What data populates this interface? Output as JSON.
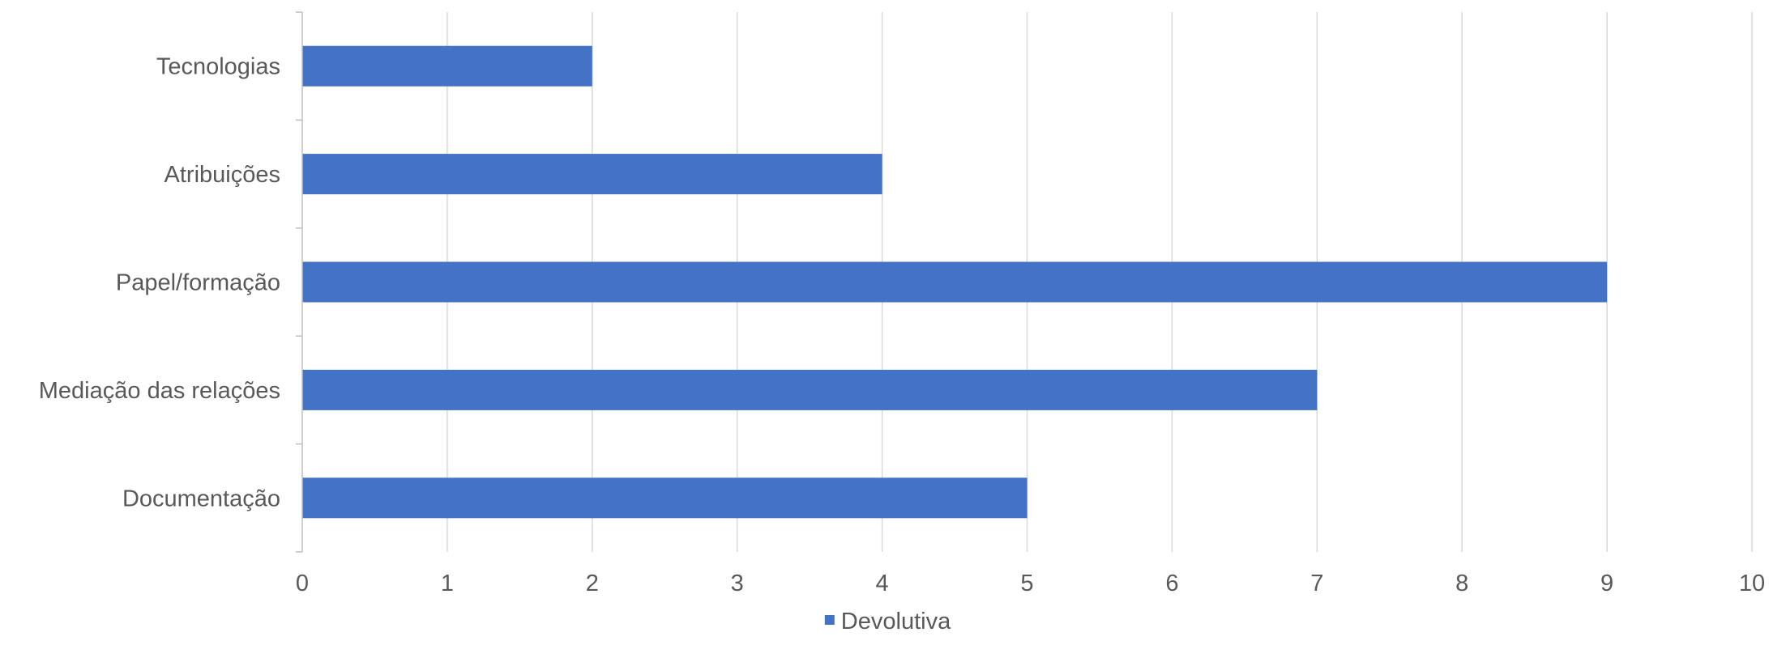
{
  "chart_data": {
    "type": "bar",
    "orientation": "horizontal",
    "categories": [
      "Tecnologias",
      "Atribuições",
      "Papel/formação",
      "Mediação das relações",
      "Documentação"
    ],
    "series": [
      {
        "name": "Devolutiva",
        "values": [
          2,
          4,
          9,
          7,
          5
        ],
        "color": "#4472C4"
      }
    ],
    "xlim": [
      0,
      10
    ],
    "x_ticks": [
      "0",
      "1",
      "2",
      "3",
      "4",
      "5",
      "6",
      "7",
      "8",
      "9",
      "10"
    ],
    "grid": true,
    "legend_position": "bottom"
  },
  "colors": {
    "bar": "#4472C4",
    "gridline": "#D9D9D9",
    "axis": "#BFBFBF",
    "text": "#595959"
  }
}
